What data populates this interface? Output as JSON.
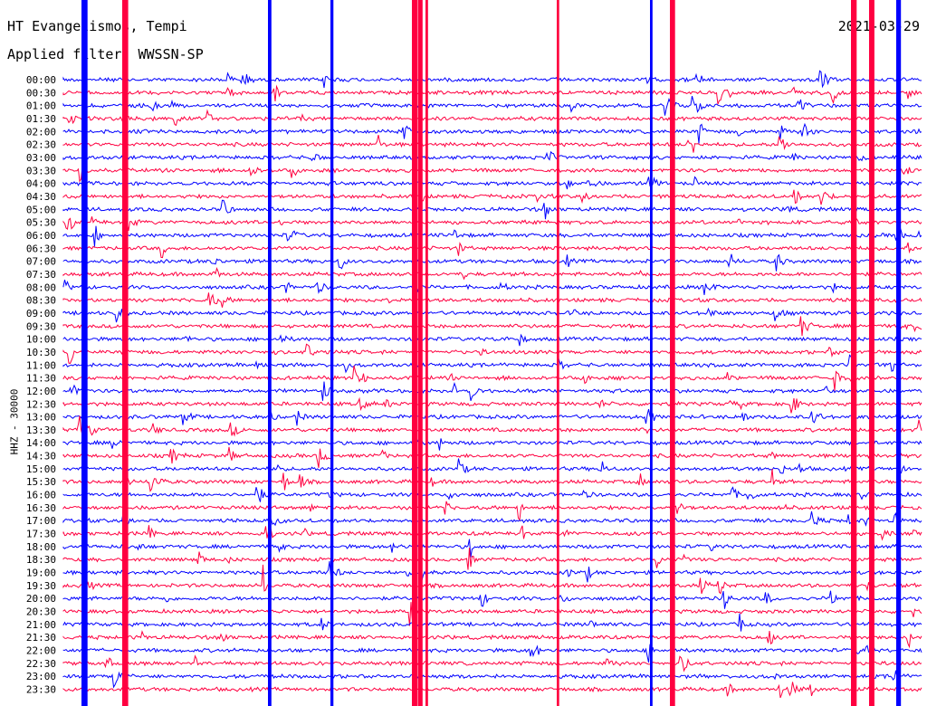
{
  "header": {
    "station": "HT Evangelismos, Tempi",
    "filter": "Applied filter: WWSSN-SP",
    "date": "2021-03-29"
  },
  "chart_data": {
    "type": "line",
    "ylabel": "HHZ - 30000",
    "row_labels": [
      "00:00",
      "00:30",
      "01:00",
      "01:30",
      "02:00",
      "02:30",
      "03:00",
      "03:30",
      "04:00",
      "04:30",
      "05:00",
      "05:30",
      "06:00",
      "06:30",
      "07:00",
      "07:30",
      "08:00",
      "08:30",
      "09:00",
      "09:30",
      "10:00",
      "10:30",
      "11:00",
      "11:30",
      "12:00",
      "12:30",
      "13:00",
      "13:30",
      "14:00",
      "14:30",
      "15:00",
      "15:30",
      "16:00",
      "16:30",
      "17:00",
      "17:30",
      "18:00",
      "18:30",
      "19:00",
      "19:30",
      "20:00",
      "20:30",
      "21:00",
      "21:30",
      "22:00",
      "22:30",
      "23:00",
      "23:30"
    ],
    "series_colors": [
      "#0000ff",
      "#ff0040"
    ],
    "grid": false,
    "legend": "none"
  }
}
